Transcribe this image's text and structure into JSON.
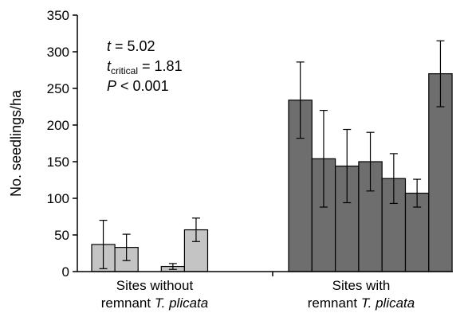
{
  "chart_data": {
    "type": "bar",
    "ylabel": "No. seedlings/ha",
    "ylim": [
      0,
      350
    ],
    "yticks": [
      0,
      50,
      100,
      150,
      200,
      250,
      300,
      350
    ],
    "grid": false,
    "groups": [
      {
        "label_parts": [
          "Sites without",
          "remnant ",
          "T. plicata"
        ],
        "color": "#c4c4c4",
        "values": [
          37,
          33,
          0,
          7,
          57
        ],
        "error": [
          33,
          18,
          0,
          4,
          16
        ]
      },
      {
        "label_parts": [
          "Sites with",
          "remnant ",
          "T. plicata"
        ],
        "color": "#6e6e6e",
        "values": [
          234,
          154,
          144,
          150,
          127,
          107,
          270
        ],
        "error": [
          52,
          66,
          50,
          40,
          34,
          19,
          45
        ]
      }
    ],
    "annotations": {
      "t_label": "t",
      "t_value": " = 5.02",
      "tcrit_label": "t",
      "tcrit_sub": "critical",
      "tcrit_value": " = 1.81",
      "p_label": "P",
      "p_value": " < 0.001"
    }
  }
}
